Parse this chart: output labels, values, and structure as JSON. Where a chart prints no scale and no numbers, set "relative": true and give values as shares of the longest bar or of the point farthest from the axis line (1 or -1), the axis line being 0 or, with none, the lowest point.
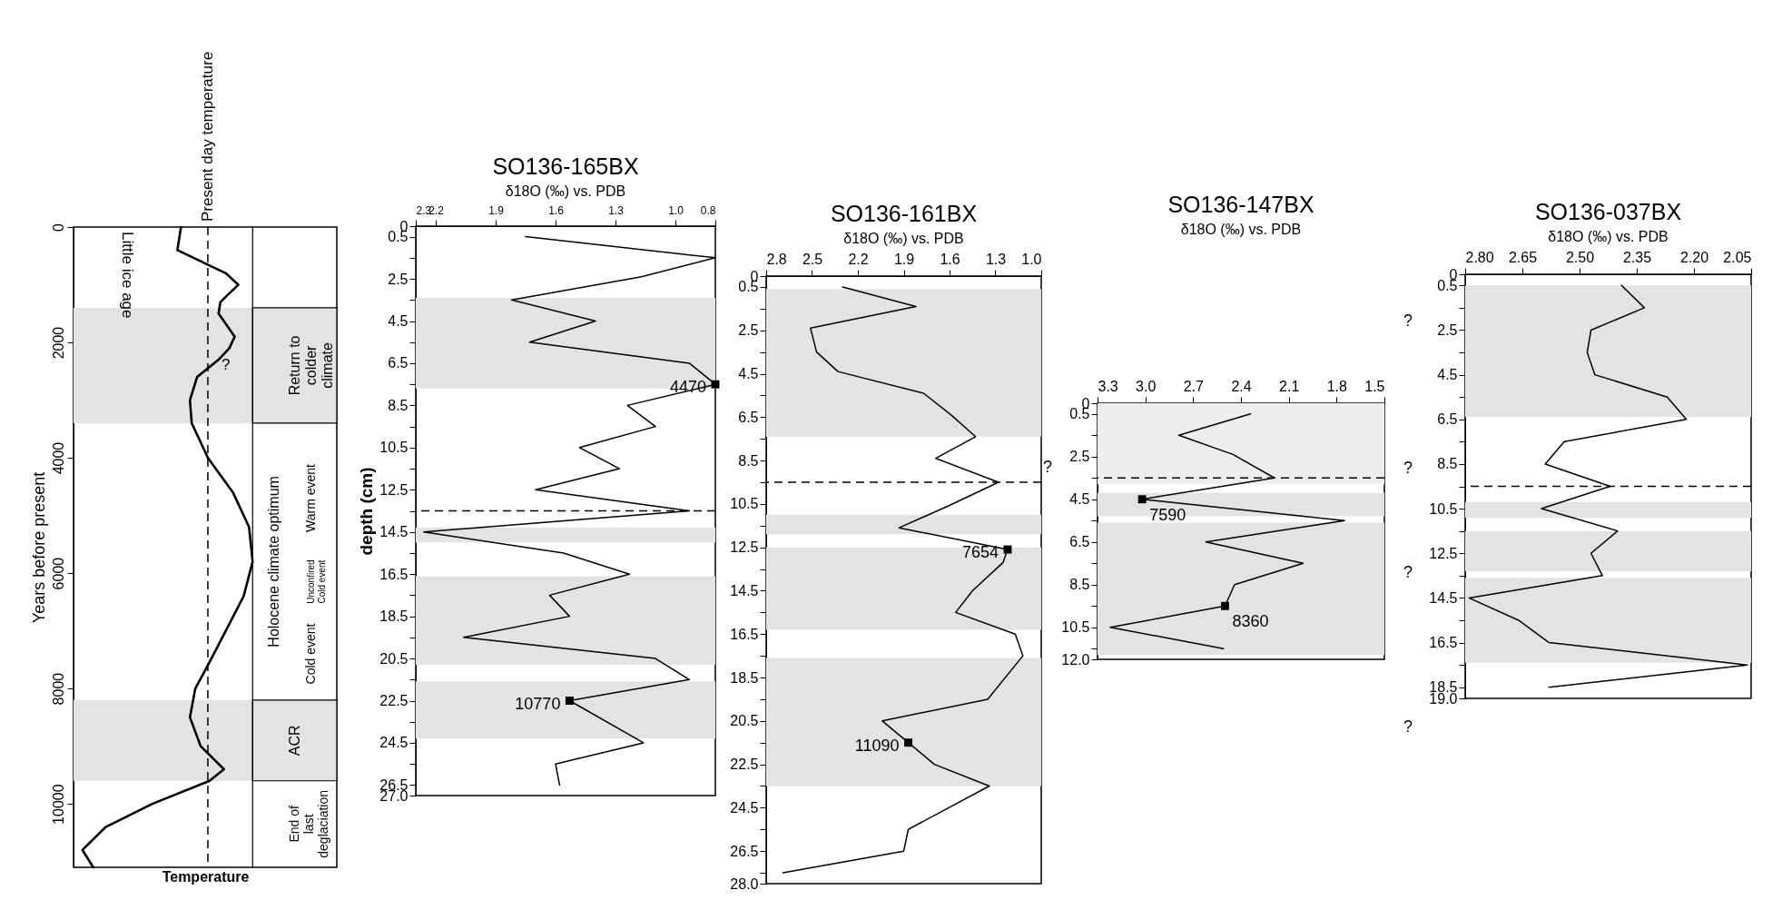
{
  "chart_data": [
    {
      "type": "line",
      "orientation": "horizontal",
      "relative": true,
      "xlabel": "Temperature",
      "ylabel": "Years before present",
      "ylim": [
        11100,
        0
      ],
      "yticks": [
        0,
        2000,
        4000,
        6000,
        8000,
        10000
      ],
      "series": [
        {
          "color": "#000000",
          "x": [
            0,
            400,
            800,
            1000,
            1300,
            1500,
            1900,
            2100,
            2300,
            2600,
            3000,
            3400,
            4000,
            4600,
            5200,
            5800,
            6400,
            7000,
            7600,
            8000,
            8500,
            9000,
            9400,
            9600,
            10000,
            10400,
            10800,
            11100
          ],
          "values": [
            0.6,
            0.58,
            0.85,
            0.92,
            0.82,
            0.81,
            0.9,
            0.87,
            0.81,
            0.69,
            0.65,
            0.66,
            0.75,
            0.89,
            0.98,
            1,
            0.95,
            0.85,
            0.75,
            0.68,
            0.65,
            0.71,
            0.84,
            0.76,
            0.44,
            0.18,
            0.05,
            0.11
          ]
        }
      ],
      "ref_lines": [
        {
          "axis": "x",
          "value": 0.75,
          "label": "Present day temperature",
          "line_style": "dashed"
        }
      ],
      "bands": [
        {
          "axis": "y",
          "from": 1400,
          "to": 3400,
          "label": "Return to colder climate",
          "color": "#e3e3e3"
        },
        {
          "axis": "y",
          "from": 8200,
          "to": 9600,
          "label": "ACR",
          "color": "#e3e3e3"
        }
      ],
      "annotations": [
        "Little ice age",
        "?",
        "Holocene climate optimum",
        "Warm event",
        "Unconfired Cold event",
        "Cold event",
        "End of last deglaciation"
      ]
    },
    {
      "type": "line",
      "orientation": "horizontal",
      "title": "SO136-165BX",
      "subtitle": "δ18O (‰) vs. PDB",
      "ylabel": "depth (cm)",
      "xlim": [
        2.3,
        0.8
      ],
      "xticks": [
        2.3,
        2.2,
        1.9,
        1.6,
        1.3,
        {
          "value": 1,
          "label": "1.0"
        },
        0.8
      ],
      "ylim": [
        27,
        0
      ],
      "yticks": [
        0,
        0.5,
        {
          "value": 1.5,
          "label": null
        },
        2.5,
        {
          "value": 3.5,
          "label": null
        },
        4.5,
        {
          "value": 5.5,
          "label": null
        },
        6.5,
        {
          "value": 7.5,
          "label": null
        },
        8.5,
        {
          "value": 9.5,
          "label": null
        },
        10.5,
        {
          "value": 11.5,
          "label": null
        },
        12.5,
        {
          "value": 13.5,
          "label": null
        },
        14.5,
        {
          "value": 15.5,
          "label": null
        },
        16.5,
        {
          "value": 17.5,
          "label": null
        },
        18.5,
        {
          "value": 19.5,
          "label": null
        },
        20.5,
        {
          "value": 21.5,
          "label": null
        },
        22.5,
        {
          "value": 23.5,
          "label": null
        },
        24.5,
        {
          "value": 25.5,
          "label": null
        },
        26.5,
        {
          "value": 27,
          "label": "27.0"
        }
      ],
      "series": [
        {
          "color": "#000000",
          "x": [
            0.5,
            1.5,
            2.4,
            3.5,
            4.5,
            5.5,
            6.5,
            7.5,
            8.5,
            9.5,
            10.5,
            11.5,
            12.5,
            13.5,
            14.5,
            15.5,
            16.5,
            17.5,
            18.5,
            19.5,
            20.5,
            21.5,
            22.5,
            24.5,
            25.5,
            26.5
          ],
          "values": [
            1.75,
            0.8,
            1.17,
            1.82,
            1.4,
            1.73,
            0.93,
            0.8,
            1.24,
            1.1,
            1.48,
            1.28,
            1.7,
            0.93,
            2.26,
            1.56,
            1.23,
            1.63,
            1.53,
            2.06,
            1.1,
            0.93,
            1.53,
            1.16,
            1.6,
            1.58
          ]
        },
        {
          "type": "scatter",
          "marker": "square",
          "color": "#000000",
          "x": [
            7.5,
            22.5
          ],
          "values": [
            0.8,
            1.53
          ]
        }
      ],
      "bands": [
        {
          "axis": "y",
          "from": 3.4,
          "to": 7.7,
          "color": "#e3e3e3"
        },
        {
          "axis": "y",
          "from": 14.3,
          "to": 15.0,
          "color": "#e3e3e3"
        },
        {
          "axis": "y",
          "from": 16.6,
          "to": 20.8,
          "color": "#e3e3e3"
        },
        {
          "axis": "y",
          "from": 21.6,
          "to": 24.3,
          "color": "#e3e3e3"
        }
      ],
      "ref_lines": [
        {
          "axis": "y",
          "value": 13.5,
          "line_style": "dashed"
        }
      ],
      "annotations": [
        {
          "text": "4470",
          "x": 0.8,
          "y": 7.5
        },
        {
          "text": "10770",
          "x": 1.53,
          "y": 22.5
        }
      ]
    },
    {
      "type": "line",
      "orientation": "horizontal",
      "title": "SO136-161BX",
      "subtitle": "δ18O (‰) vs. PDB",
      "xlim": [
        2.8,
        1.0
      ],
      "xticks": [
        2.8,
        2.5,
        2.2,
        1.9,
        1.6,
        1.3,
        {
          "value": 1,
          "label": "1.0"
        }
      ],
      "ylim": [
        28,
        0
      ],
      "yticks": [
        0,
        0.5,
        {
          "value": 1.5,
          "label": null
        },
        2.5,
        {
          "value": 3.5,
          "label": null
        },
        4.5,
        {
          "value": 5.5,
          "label": null
        },
        6.5,
        {
          "value": 7.5,
          "label": null
        },
        8.5,
        {
          "value": 9.5,
          "label": null
        },
        10.5,
        {
          "value": 11.5,
          "label": null
        },
        12.5,
        {
          "value": 13.5,
          "label": null
        },
        14.5,
        {
          "value": 15.5,
          "label": null
        },
        16.5,
        {
          "value": 17.5,
          "label": null
        },
        18.5,
        {
          "value": 19.5,
          "label": null
        },
        20.5,
        {
          "value": 21.5,
          "label": null
        },
        22.5,
        {
          "value": 23.5,
          "label": null
        },
        24.5,
        {
          "value": 25.5,
          "label": null
        },
        26.5,
        {
          "value": 27.5,
          "label": null
        },
        {
          "value": 28,
          "label": "28.0"
        }
      ],
      "series": [
        {
          "color": "#000000",
          "x": [
            0.5,
            1.4,
            2.4,
            3.5,
            4.4,
            5.4,
            6.4,
            7.4,
            8.4,
            9.5,
            10.6,
            11.6,
            12.6,
            13.2,
            14.5,
            15.5,
            16.5,
            17.5,
            19.5,
            20.5,
            21.5,
            22.5,
            23.5,
            25.5,
            26.5,
            27.5
          ],
          "values": [
            2.3,
            1.82,
            2.51,
            2.47,
            2.33,
            1.77,
            1.59,
            1.43,
            1.69,
            1.28,
            1.61,
            1.93,
            1.22,
            1.25,
            1.45,
            1.56,
            1.17,
            1.12,
            1.35,
            2.04,
            1.87,
            1.7,
            1.34,
            1.87,
            1.9,
            2.69
          ]
        },
        {
          "type": "scatter",
          "marker": "square",
          "color": "#000000",
          "x": [
            12.6,
            21.5
          ],
          "values": [
            1.22,
            1.87
          ]
        }
      ],
      "bands": [
        {
          "axis": "y",
          "from": 0.6,
          "to": 7.4,
          "color": "#e3e3e3"
        },
        {
          "axis": "y",
          "from": 11.0,
          "to": 11.9,
          "color": "#e3e3e3"
        },
        {
          "axis": "y",
          "from": 12.5,
          "to": 16.3,
          "color": "#e3e3e3"
        },
        {
          "axis": "y",
          "from": 17.6,
          "to": 23.5,
          "color": "#e3e3e3"
        }
      ],
      "ref_lines": [
        {
          "axis": "y",
          "value": 9.5,
          "line_style": "dashed"
        }
      ],
      "annotations": [
        {
          "text": "7654",
          "x": 1.22,
          "y": 12.6
        },
        {
          "text": "11090",
          "x": 1.87,
          "y": 21.5
        }
      ]
    },
    {
      "type": "line",
      "orientation": "horizontal",
      "title": "SO136-147BX",
      "subtitle": "δ18O (‰) vs. PDB",
      "xlim": [
        3.3,
        1.5
      ],
      "xticks": [
        3.3,
        {
          "value": 3,
          "label": "3.0"
        },
        2.7,
        2.4,
        2.1,
        1.8,
        1.5
      ],
      "ylim": [
        12,
        0
      ],
      "yticks": [
        0,
        0.5,
        {
          "value": 1.5,
          "label": null
        },
        2.5,
        {
          "value": 3.5,
          "label": null
        },
        4.5,
        {
          "value": 5.5,
          "label": null
        },
        6.5,
        {
          "value": 7.5,
          "label": null
        },
        8.5,
        {
          "value": 9.5,
          "label": null
        },
        10.5,
        {
          "value": 11.5,
          "label": null
        },
        {
          "value": 12,
          "label": "12.0"
        }
      ],
      "series": [
        {
          "color": "#000000",
          "x": [
            0.5,
            1.5,
            2.4,
            3.5,
            4.5,
            5.5,
            6.5,
            7.5,
            8.5,
            9.5,
            10.5,
            11.5
          ],
          "values": [
            2.34,
            2.79,
            2.45,
            2.19,
            3.02,
            1.75,
            2.62,
            2.01,
            2.44,
            2.5,
            3.22,
            2.51
          ]
        },
        {
          "type": "scatter",
          "marker": "square",
          "color": "#000000",
          "x": [
            4.5,
            9.5
          ],
          "values": [
            3.02,
            2.5
          ]
        }
      ],
      "bands": [
        {
          "axis": "y",
          "from": 0,
          "to": 3.8,
          "color": "#eeeeee"
        },
        {
          "axis": "y",
          "from": 4.2,
          "to": 5.3,
          "color": "#e3e3e3"
        },
        {
          "axis": "y",
          "from": 5.6,
          "to": 11.8,
          "color": "#e3e3e3"
        }
      ],
      "ref_lines": [
        {
          "axis": "y",
          "value": 3.5,
          "line_style": "dashed"
        }
      ],
      "annotations": [
        {
          "text": "7590",
          "x": 3.02,
          "y": 4.5
        },
        {
          "text": "8360",
          "x": 2.5,
          "y": 9.5
        },
        "?"
      ]
    },
    {
      "type": "line",
      "orientation": "horizontal",
      "title": "SO136-037BX",
      "subtitle": "δ18O (‰) vs. PDB",
      "xlim": [
        2.8,
        2.05
      ],
      "xticks": [
        {
          "value": 2.8,
          "label": "2.80"
        },
        2.65,
        {
          "value": 2.5,
          "label": "2.50"
        },
        2.35,
        {
          "value": 2.2,
          "label": "2.20"
        },
        2.05
      ],
      "ylim": [
        19,
        0
      ],
      "yticks": [
        0,
        0.5,
        {
          "value": 1.5,
          "label": null
        },
        2.5,
        {
          "value": 3.5,
          "label": null
        },
        4.5,
        {
          "value": 5.5,
          "label": null
        },
        6.5,
        {
          "value": 7.5,
          "label": null
        },
        8.5,
        {
          "value": 9.5,
          "label": null
        },
        10.5,
        {
          "value": 11.5,
          "label": null
        },
        12.5,
        {
          "value": 13.5,
          "label": null
        },
        14.5,
        {
          "value": 15.5,
          "label": null
        },
        16.5,
        {
          "value": 17.5,
          "label": null
        },
        18.5,
        {
          "value": 19,
          "label": "19.0"
        }
      ],
      "series": [
        {
          "color": "#000000",
          "x": [
            0.5,
            1.5,
            2.5,
            3.5,
            4.5,
            5.5,
            6.5,
            7.5,
            8.5,
            9.5,
            10.5,
            11.5,
            12.5,
            13.5,
            14.5,
            15.5,
            16.5,
            17.5,
            18.5
          ],
          "values": [
            2.39,
            2.33,
            2.47,
            2.48,
            2.46,
            2.27,
            2.22,
            2.54,
            2.59,
            2.42,
            2.6,
            2.4,
            2.47,
            2.44,
            2.79,
            2.66,
            2.58,
            2.06,
            2.58
          ]
        }
      ],
      "bands": [
        {
          "axis": "y",
          "from": 0.5,
          "to": 6.4,
          "color": "#e3e3e3"
        },
        {
          "axis": "y",
          "from": 10.2,
          "to": 10.9,
          "color": "#e3e3e3"
        },
        {
          "axis": "y",
          "from": 11.5,
          "to": 13.3,
          "color": "#e3e3e3"
        },
        {
          "axis": "y",
          "from": 13.6,
          "to": 17.4,
          "color": "#e3e3e3"
        }
      ],
      "ref_lines": [
        {
          "axis": "y",
          "value": 9.5,
          "line_style": "dashed"
        }
      ],
      "annotations": [
        "?",
        "?",
        "?",
        "?"
      ]
    }
  ]
}
